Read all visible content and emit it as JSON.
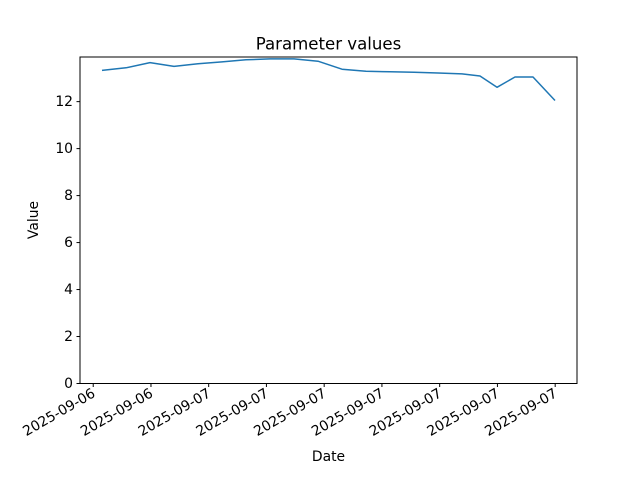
{
  "figure": {
    "background": "#ffffff",
    "spine_color": "#000000",
    "text_color": "#000000"
  },
  "chart_data": {
    "type": "line",
    "title": "Parameter values",
    "xlabel": "Date",
    "ylabel": "Value",
    "ylim": [
      0,
      13.9
    ],
    "yticks": [
      0,
      2,
      4,
      6,
      8,
      10,
      12
    ],
    "grid": false,
    "line_color": "#1f77b4",
    "xticks": [
      {
        "pos": 0.0266,
        "label": "2025-09-06"
      },
      {
        "pos": 0.1428,
        "label": "2025-09-06"
      },
      {
        "pos": 0.2589,
        "label": "2025-09-07"
      },
      {
        "pos": 0.3751,
        "label": "2025-09-07"
      },
      {
        "pos": 0.4913,
        "label": "2025-09-07"
      },
      {
        "pos": 0.6075,
        "label": "2025-09-07"
      },
      {
        "pos": 0.7237,
        "label": "2025-09-07"
      },
      {
        "pos": 0.8399,
        "label": "2025-09-07"
      },
      {
        "pos": 0.9561,
        "label": "2025-09-07"
      }
    ],
    "series": [
      {
        "name": "Parameter values",
        "points": [
          {
            "x": 0.0443,
            "y": 13.33
          },
          {
            "x": 0.0926,
            "y": 13.44
          },
          {
            "x": 0.1408,
            "y": 13.66
          },
          {
            "x": 0.1891,
            "y": 13.5
          },
          {
            "x": 0.2374,
            "y": 13.61
          },
          {
            "x": 0.2857,
            "y": 13.69
          },
          {
            "x": 0.334,
            "y": 13.78
          },
          {
            "x": 0.3823,
            "y": 13.82
          },
          {
            "x": 0.4306,
            "y": 13.82
          },
          {
            "x": 0.4789,
            "y": 13.72
          },
          {
            "x": 0.5272,
            "y": 13.38
          },
          {
            "x": 0.5755,
            "y": 13.29
          },
          {
            "x": 0.6237,
            "y": 13.27
          },
          {
            "x": 0.672,
            "y": 13.25
          },
          {
            "x": 0.7203,
            "y": 13.22
          },
          {
            "x": 0.7686,
            "y": 13.18
          },
          {
            "x": 0.8048,
            "y": 13.09
          },
          {
            "x": 0.839,
            "y": 12.61
          },
          {
            "x": 0.8753,
            "y": 13.05
          },
          {
            "x": 0.9115,
            "y": 13.05
          },
          {
            "x": 0.9557,
            "y": 12.05
          }
        ]
      }
    ]
  }
}
